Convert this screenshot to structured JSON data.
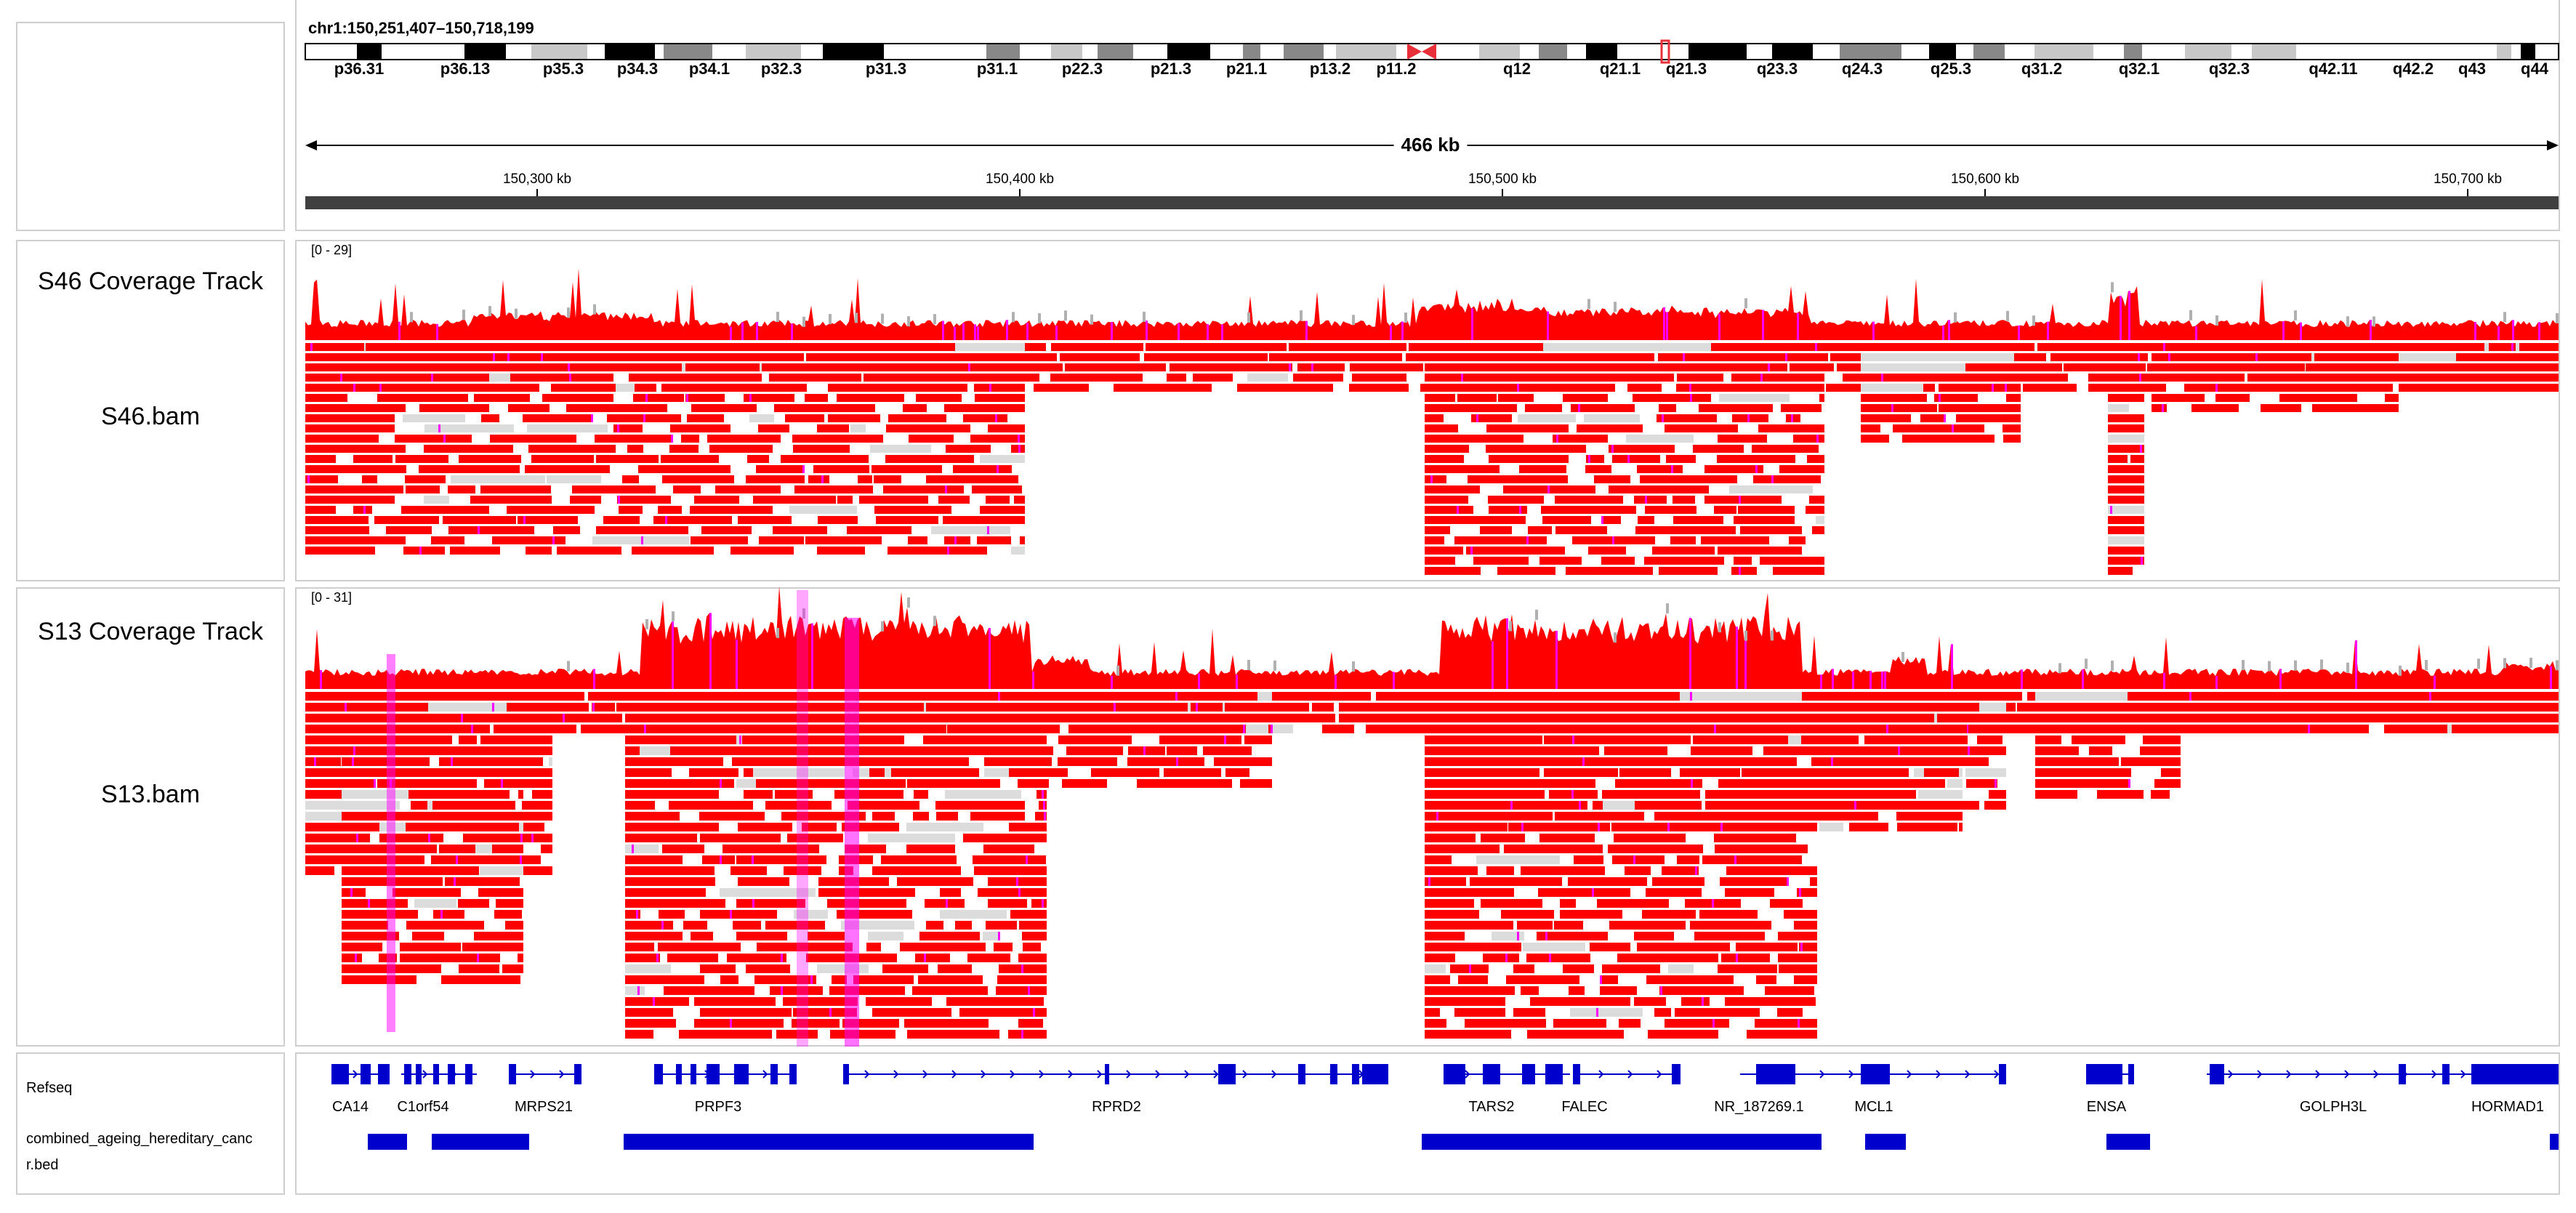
{
  "header": {
    "locus": "chr1:150,251,407–150,718,199",
    "span": "466 kb",
    "kb_ticks": [
      "150,300 kb",
      "150,400 kb",
      "150,500 kb",
      "150,600 kb",
      "150,700 kb"
    ]
  },
  "ideogram": {
    "bands": [
      "p36.31",
      "p36.13",
      "p35.3",
      "p34.3",
      "p34.1",
      "p32.3",
      "p31.3",
      "p31.1",
      "p22.3",
      "p21.3",
      "p21.1",
      "p13.2",
      "p11.2",
      "q12",
      "q21.1",
      "q21.3",
      "q23.3",
      "q24.3",
      "q25.3",
      "q31.2",
      "q32.1",
      "q32.3",
      "q42.11",
      "q42.2",
      "q43",
      "q44"
    ]
  },
  "tracks": {
    "s46_coverage": {
      "name": "S46 Coverage Track",
      "range": "[0 - 29]"
    },
    "s46_bam": {
      "name": "S46.bam"
    },
    "s13_coverage": {
      "name": "S13 Coverage Track",
      "range": "[0 - 31]"
    },
    "s13_bam": {
      "name": "S13.bam"
    },
    "refseq": {
      "name": "Refseq"
    },
    "bed": {
      "name_line1": "combined_ageing_hereditary_canc",
      "name_line2": "r.bed"
    }
  },
  "genes": [
    "CA14",
    "C1orf54",
    "MRPS21",
    "PRPF3",
    "RPRD2",
    "TARS2",
    "FALEC",
    "NR_187269.1",
    "MCL1",
    "ENSA",
    "GOLPH3L",
    "HORMAD1"
  ],
  "colors": {
    "read": "#ff0000",
    "mismatch": "#ff00ff",
    "gene": "#0000cc",
    "coverage_gray": "#b0b0b0",
    "ideogram_dark": "#000000",
    "ideogram_mid": "#888888",
    "ideogram_light": "#c8c8c8",
    "centromere": "#e8303a"
  }
}
